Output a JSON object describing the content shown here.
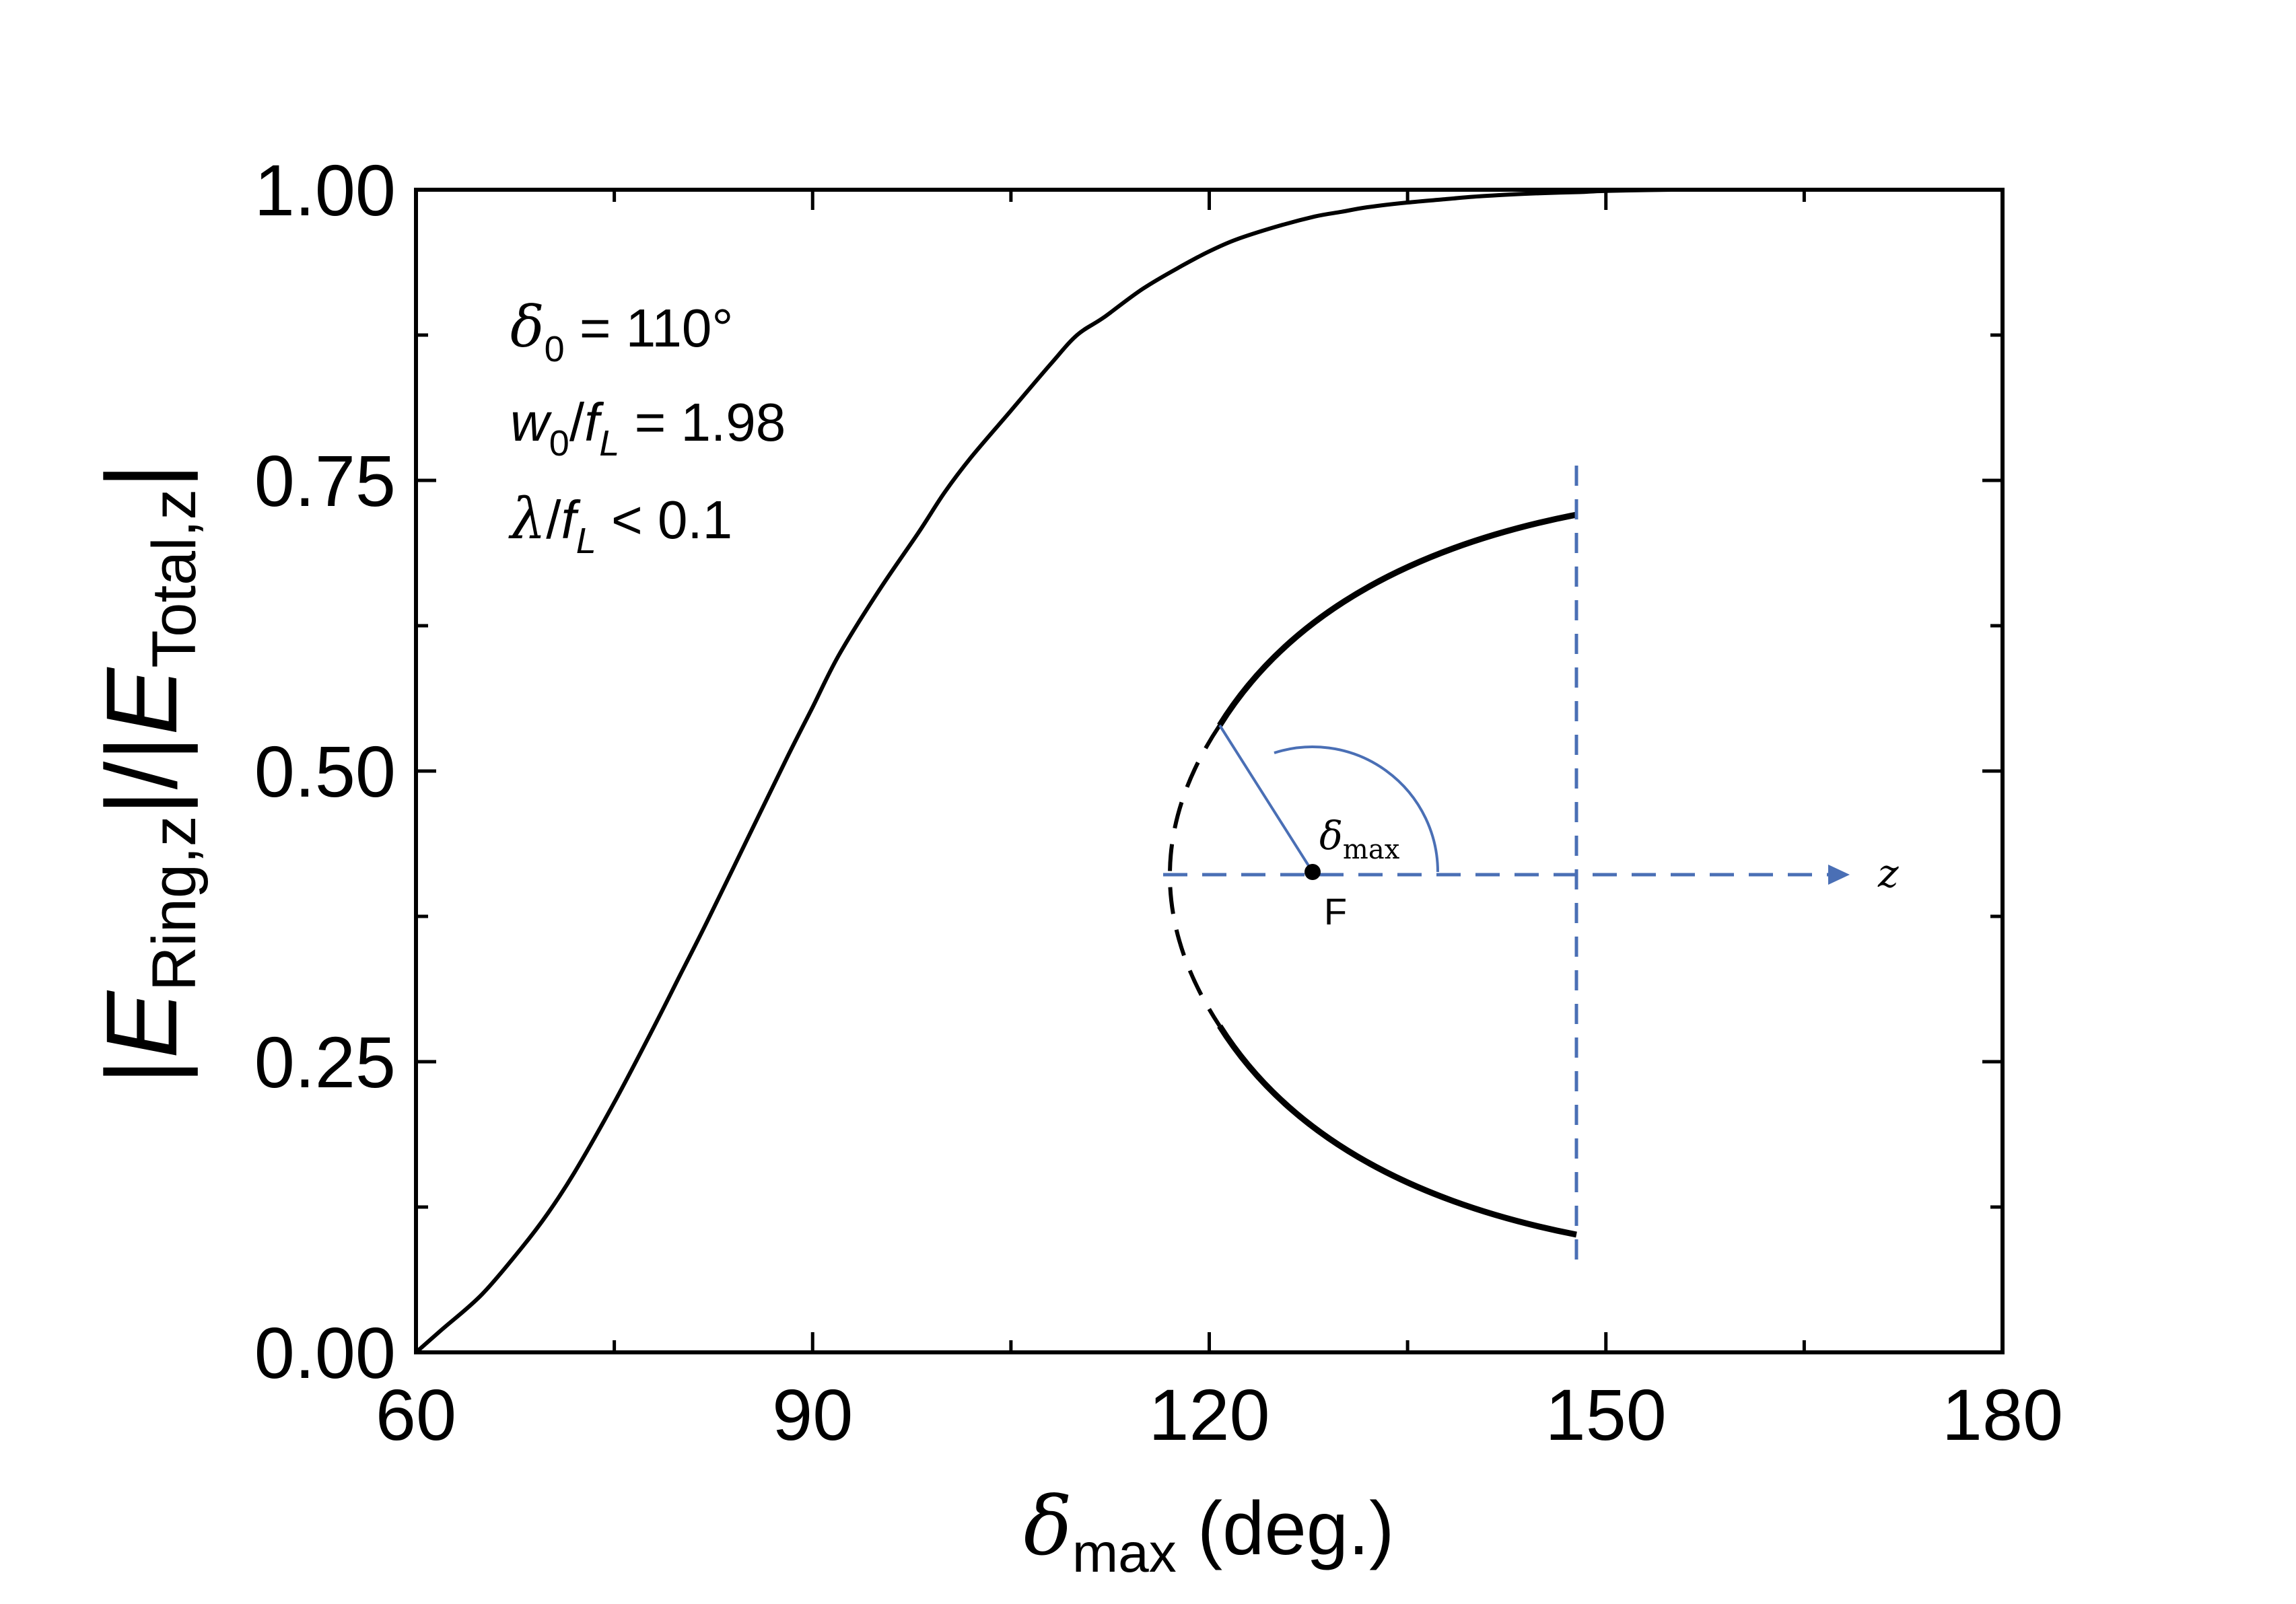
{
  "chart_data": {
    "type": "line",
    "xlabel": {
      "symbol": "δ",
      "sub": "max",
      "rest": " (deg.)"
    },
    "ylabel": {
      "open": "|",
      "num_symbol": "E",
      "num_sub": "Ring,z",
      "mid": "|/|",
      "den_symbol": "E",
      "den_sub": "Total,z",
      "close": "|"
    },
    "xlim": [
      60,
      180
    ],
    "ylim": [
      0.0,
      1.0
    ],
    "xticks": [
      60,
      90,
      120,
      150,
      180
    ],
    "xtick_labels": [
      "60",
      "90",
      "120",
      "150",
      "180"
    ],
    "yticks": [
      0.0,
      0.25,
      0.5,
      0.75,
      1.0
    ],
    "ytick_labels": [
      "0.00",
      "0.25",
      "0.50",
      "0.75",
      "1.00"
    ],
    "minor_xticks": [
      75,
      105,
      135,
      165
    ],
    "minor_yticks": [
      0.125,
      0.375,
      0.625,
      0.875
    ],
    "grid": false,
    "legend": "none",
    "series": [
      {
        "color": "#000000",
        "x": [
          60,
          62,
          65,
          68,
          70,
          72,
          75,
          78,
          80,
          82,
          85,
          88,
          90,
          92,
          95,
          98,
          100,
          102,
          105,
          108,
          110,
          112,
          115,
          118,
          120,
          122,
          125,
          128,
          130,
          132,
          135,
          138,
          140,
          143,
          145,
          148,
          150,
          155,
          160,
          165,
          170,
          175,
          180
        ],
        "y": [
          0.0,
          0.02,
          0.05,
          0.09,
          0.12,
          0.155,
          0.215,
          0.28,
          0.325,
          0.37,
          0.44,
          0.51,
          0.555,
          0.6,
          0.655,
          0.705,
          0.74,
          0.77,
          0.81,
          0.85,
          0.875,
          0.89,
          0.915,
          0.935,
          0.947,
          0.957,
          0.968,
          0.977,
          0.981,
          0.985,
          0.989,
          0.992,
          0.994,
          0.996,
          0.997,
          0.998,
          0.999,
          1.0,
          1.0,
          1.0,
          1.0,
          1.0,
          1.0
        ]
      }
    ],
    "annotations": [
      {
        "symbol": "δ",
        "sub": "0",
        "text": " = 110°"
      },
      {
        "symbol": "w",
        "sub": "0",
        "mid": "/",
        "symbol2": "f",
        "sub2": "L",
        "text": " = 1.98"
      },
      {
        "symbol": "λ",
        "mid": "/",
        "symbol2": "f",
        "sub2": "L",
        "text": " < 0.1"
      }
    ],
    "inset": {
      "angle_symbol": "δ",
      "angle_sub": "max",
      "focus_label": "F",
      "axis_label": "z",
      "blue": "#4a6fb5",
      "black": "#000000"
    }
  }
}
